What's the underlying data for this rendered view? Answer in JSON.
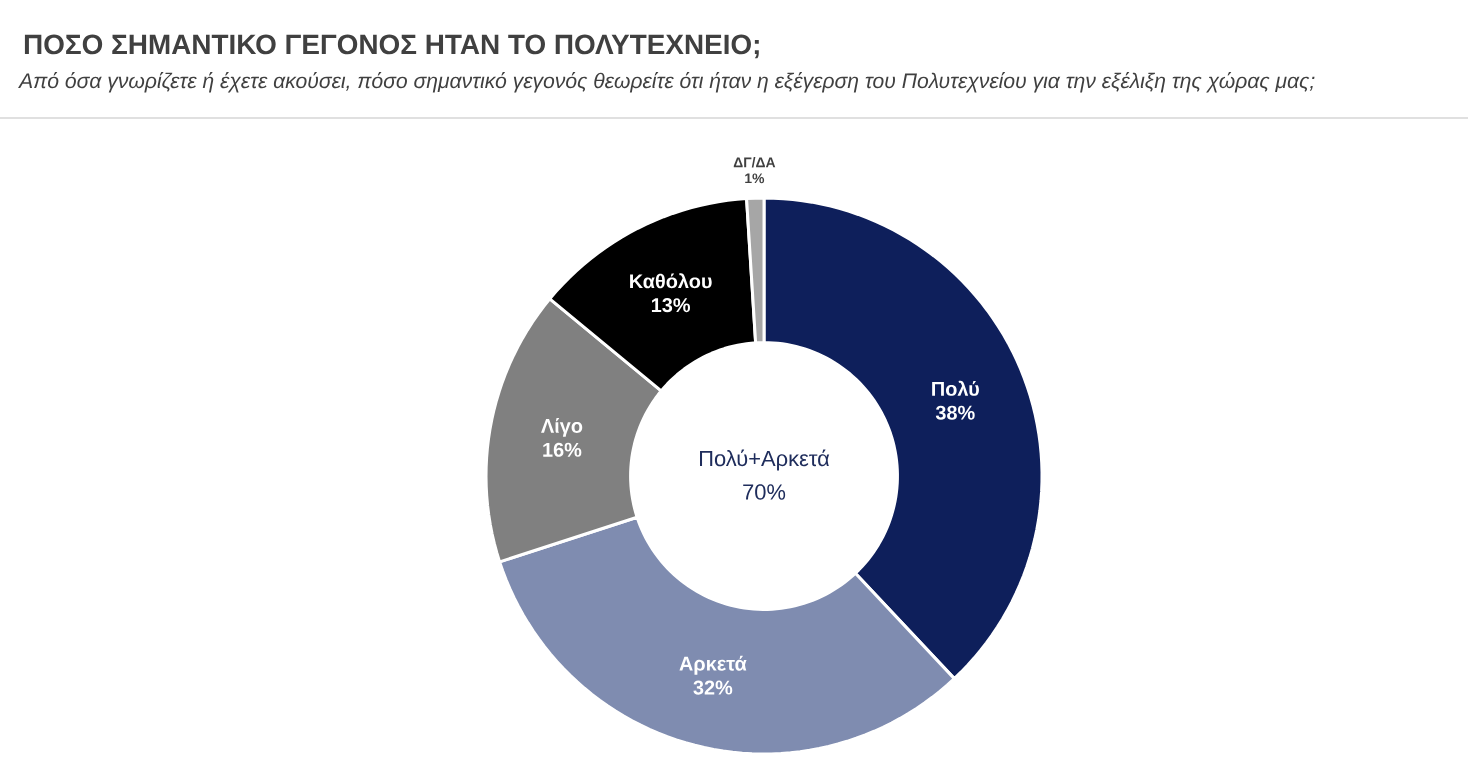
{
  "chart_data": {
    "type": "donut",
    "title": "ΠΟΣΟ ΣΗΜΑΝΤΙΚΟ ΓΕΓΟΝΟΣ ΗΤΑΝ ΤΟ ΠΟΛΥΤΕΧΝΕΙΟ;",
    "subtitle": "Από όσα γνωρίζετε ή έχετε ακούσει, πόσο σημαντικό γεγονός θεωρείτε ότι ήταν η εξέγερση του Πολυτεχνείου για την εξέλιξη της χώρας μας;",
    "categories": [
      "Πολύ",
      "Αρκετά",
      "Λίγο",
      "Καθόλου",
      "ΔΓ/ΔΑ"
    ],
    "values": [
      38,
      32,
      16,
      13,
      1
    ],
    "value_labels": [
      "38%",
      "32%",
      "16%",
      "13%",
      "1%"
    ],
    "colors": [
      "#0e1f5b",
      "#7f8cb0",
      "#808080",
      "#000000",
      "#a6a6a6"
    ],
    "annotations": [
      "Πολύ+Αρκετά",
      "70%"
    ]
  }
}
